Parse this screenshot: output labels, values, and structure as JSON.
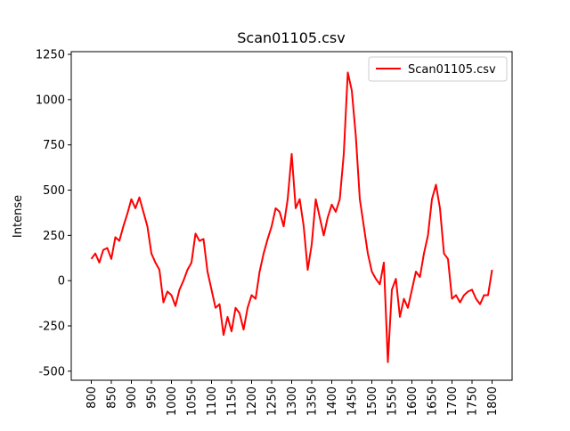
{
  "chart_data": {
    "type": "line",
    "title": "Scan01105.csv",
    "y_label": "Intense",
    "x": [
      800,
      810,
      820,
      830,
      840,
      850,
      860,
      870,
      880,
      890,
      900,
      910,
      920,
      930,
      940,
      950,
      960,
      970,
      980,
      990,
      1000,
      1010,
      1020,
      1030,
      1040,
      1050,
      1060,
      1070,
      1080,
      1090,
      1100,
      1110,
      1120,
      1130,
      1140,
      1150,
      1160,
      1170,
      1180,
      1190,
      1200,
      1210,
      1220,
      1230,
      1240,
      1250,
      1260,
      1270,
      1280,
      1290,
      1300,
      1310,
      1320,
      1330,
      1340,
      1350,
      1360,
      1370,
      1380,
      1390,
      1400,
      1410,
      1420,
      1430,
      1440,
      1450,
      1460,
      1470,
      1480,
      1490,
      1500,
      1510,
      1520,
      1530,
      1540,
      1550,
      1560,
      1570,
      1580,
      1590,
      1600,
      1610,
      1620,
      1630,
      1640,
      1650,
      1660,
      1670,
      1680,
      1690,
      1700,
      1710,
      1720,
      1730,
      1740,
      1750,
      1760,
      1770,
      1780,
      1790,
      1800
    ],
    "series": [
      {
        "name": "Scan01105.csv",
        "color": "#ff0000",
        "values": [
          120,
          150,
          100,
          170,
          180,
          120,
          240,
          220,
          300,
          370,
          450,
          400,
          460,
          380,
          300,
          150,
          100,
          60,
          -120,
          -60,
          -80,
          -140,
          -50,
          0,
          60,
          100,
          260,
          220,
          230,
          50,
          -50,
          -150,
          -130,
          -300,
          -200,
          -280,
          -150,
          -180,
          -270,
          -150,
          -80,
          -100,
          50,
          150,
          230,
          300,
          400,
          380,
          300,
          450,
          700,
          400,
          450,
          300,
          60,
          200,
          450,
          350,
          250,
          350,
          420,
          380,
          450,
          700,
          1150,
          1050,
          800,
          450,
          300,
          150,
          50,
          10,
          -20,
          100,
          -450,
          -50,
          10,
          -200,
          -100,
          -150,
          -50,
          50,
          20,
          150,
          250,
          450,
          530,
          400,
          150,
          120,
          -100,
          -80,
          -120,
          -80,
          -60,
          -50,
          -100,
          -130,
          -80,
          -80,
          60
        ]
      }
    ],
    "xlim": [
      750,
      1850
    ],
    "ylim": [
      -550,
      1265
    ],
    "xticks": [
      800,
      850,
      900,
      950,
      1000,
      1050,
      1100,
      1150,
      1200,
      1250,
      1300,
      1350,
      1400,
      1450,
      1500,
      1550,
      1600,
      1650,
      1700,
      1750,
      1800
    ],
    "yticks": [
      -500,
      -250,
      0,
      250,
      500,
      750,
      1000,
      1250
    ],
    "legend": "upper right",
    "grid": false
  }
}
